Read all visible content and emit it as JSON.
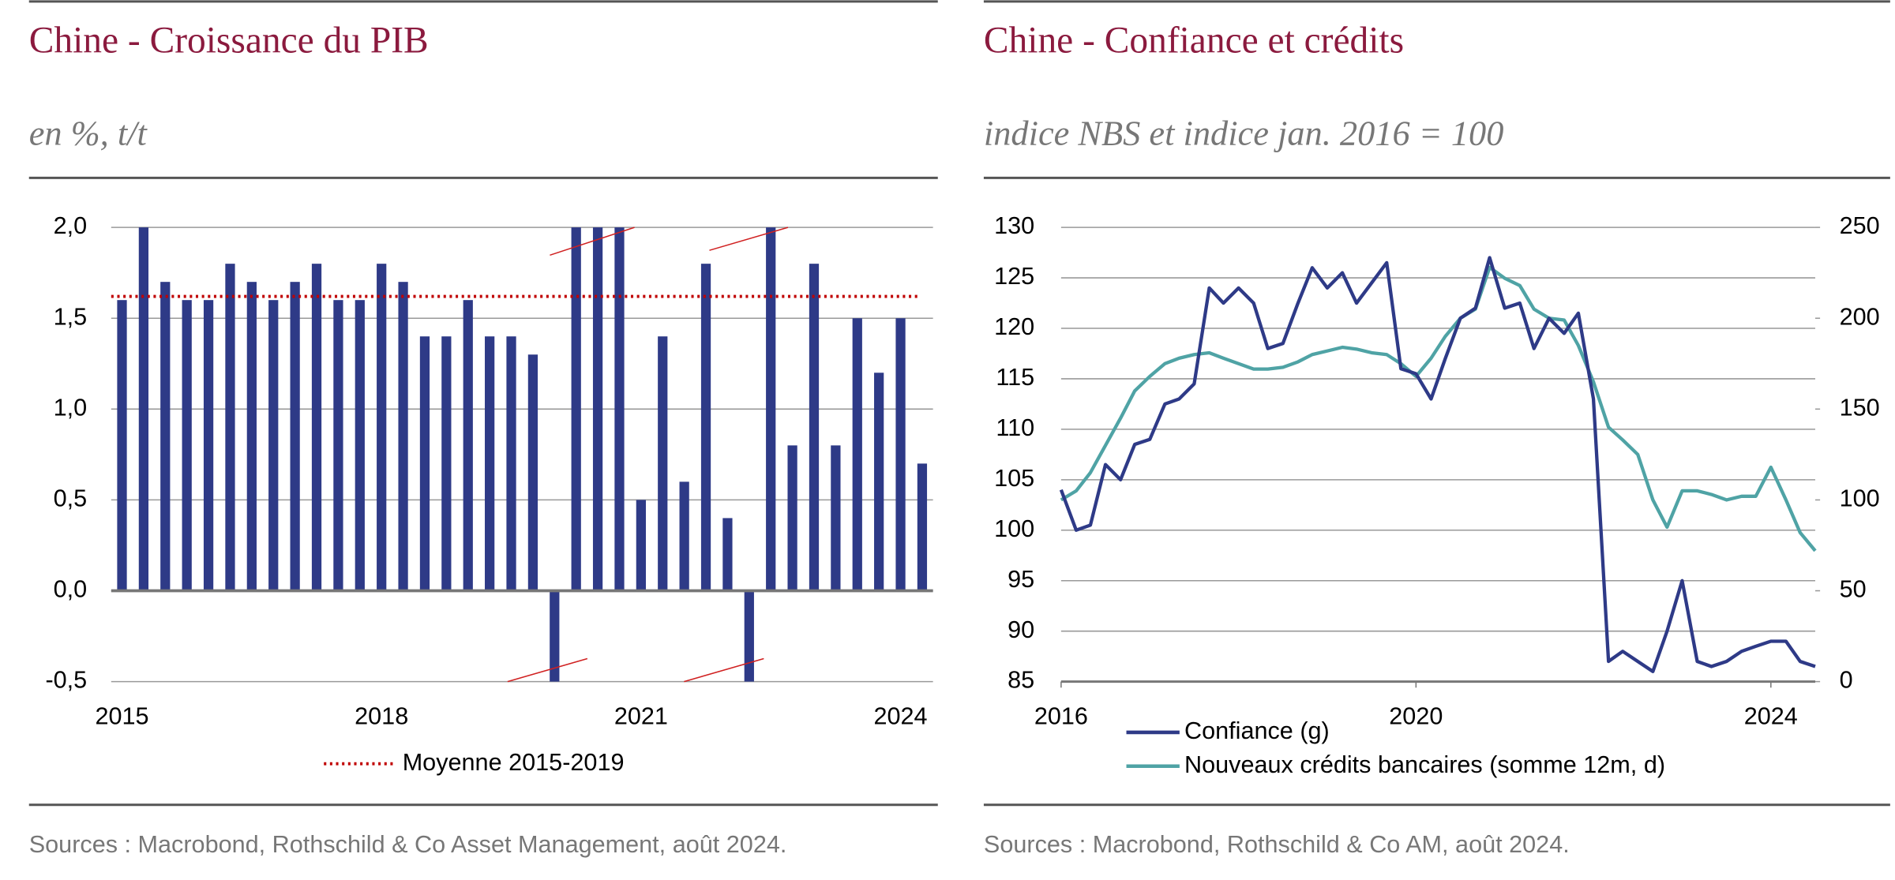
{
  "chart_data": [
    {
      "type": "bar",
      "title": "Chine - Croissance du PIB",
      "subtitle": "en %, t/t",
      "source": "Sources : Macrobond, Rothschild & Co Asset Management, août 2024.",
      "categories": [
        "2015",
        null,
        null,
        null,
        null,
        null,
        null,
        null,
        null,
        null,
        null,
        null,
        "2018",
        null,
        null,
        null,
        null,
        null,
        null,
        null,
        null,
        null,
        null,
        null,
        "2021",
        null,
        null,
        null,
        null,
        null,
        null,
        null,
        null,
        null,
        null,
        null,
        "2024",
        null
      ],
      "values": [
        1.6,
        2.0,
        1.7,
        1.6,
        1.6,
        1.8,
        1.7,
        1.6,
        1.7,
        1.8,
        1.6,
        1.6,
        1.8,
        1.7,
        1.4,
        1.4,
        1.6,
        1.4,
        1.4,
        1.3,
        -0.5,
        2.0,
        2.0,
        2.0,
        0.5,
        1.4,
        0.6,
        1.8,
        0.4,
        -0.5,
        2.0,
        0.8,
        1.8,
        0.8,
        1.5,
        1.2,
        1.5,
        0.7
      ],
      "color": "#2e3a87",
      "ylim": [
        -0.5,
        2.0
      ],
      "yticks": [
        {
          "value": -0.5,
          "label": "-0,5"
        },
        {
          "value": 0,
          "label": "0,0"
        },
        {
          "value": 0.5,
          "label": "0,5"
        },
        {
          "value": 1,
          "label": "1,0"
        },
        {
          "value": 1.5,
          "label": "1,5"
        },
        {
          "value": 2,
          "label": "2,0"
        }
      ],
      "grid": true,
      "average": {
        "name": "Moyenne 2015-2019",
        "value": 1.62,
        "color": "#c00000"
      }
    },
    {
      "type": "line",
      "title": "Chine -  Confiance et crédits",
      "subtitle": "indice NBS et indice jan. 2016 = 100",
      "source": "Sources : Macrobond, Rothschild & Co AM, août 2024.",
      "x": [
        2016,
        2016.17,
        2016.33,
        2016.5,
        2016.67,
        2016.83,
        2017,
        2017.17,
        2017.33,
        2017.5,
        2017.67,
        2017.83,
        2018,
        2018.17,
        2018.33,
        2018.5,
        2018.67,
        2018.83,
        2019,
        2019.17,
        2019.33,
        2019.5,
        2019.67,
        2019.83,
        2020,
        2020.17,
        2020.33,
        2020.5,
        2020.67,
        2020.83,
        2021,
        2021.17,
        2021.33,
        2021.5,
        2021.67,
        2021.83,
        2022,
        2022.17,
        2022.33,
        2022.5,
        2022.67,
        2022.83,
        2023,
        2023.17,
        2023.33,
        2023.5,
        2023.67,
        2023.83,
        2024,
        2024.17,
        2024.33,
        2024.5
      ],
      "series": [
        {
          "name": "Confiance (g)",
          "color": "#2e3a87",
          "axis": "y",
          "values": [
            104,
            100,
            100.5,
            106.5,
            105,
            108.5,
            109,
            112.5,
            113,
            114.5,
            124,
            122.5,
            124,
            122.5,
            118,
            118.5,
            122.5,
            126,
            124,
            125.5,
            122.5,
            124.5,
            126.5,
            116,
            115.5,
            113,
            117,
            121,
            122,
            127,
            122,
            122.5,
            118,
            121,
            119.5,
            121.5,
            113,
            87,
            88,
            87,
            86,
            90,
            95,
            87,
            86.5,
            87,
            88,
            88.5,
            89,
            89,
            87,
            86.5
          ]
        },
        {
          "name": "Nouveaux crédits bancaires (somme 12m, d)",
          "color": "#4fa3a5",
          "axis": "y2",
          "values": [
            100,
            105,
            115,
            130,
            145,
            160,
            168,
            175,
            178,
            180,
            181,
            178,
            175,
            172,
            172,
            173,
            176,
            180,
            182,
            184,
            183,
            181,
            180,
            175,
            168,
            178,
            190,
            200,
            205,
            228,
            222,
            218,
            205,
            200,
            199,
            185,
            165,
            140,
            133,
            125,
            100,
            85,
            105,
            105,
            103,
            100,
            102,
            102,
            118,
            100,
            82,
            72
          ]
        }
      ],
      "xlim": [
        2016,
        2024.5
      ],
      "xticks": [
        2016,
        2020,
        2024
      ],
      "ylim": [
        85,
        130
      ],
      "yticks": [
        85,
        90,
        95,
        100,
        105,
        110,
        115,
        120,
        125,
        130
      ],
      "y2lim": [
        0,
        250
      ],
      "y2ticks": [
        0,
        50,
        100,
        150,
        200,
        250
      ],
      "grid": true
    }
  ]
}
